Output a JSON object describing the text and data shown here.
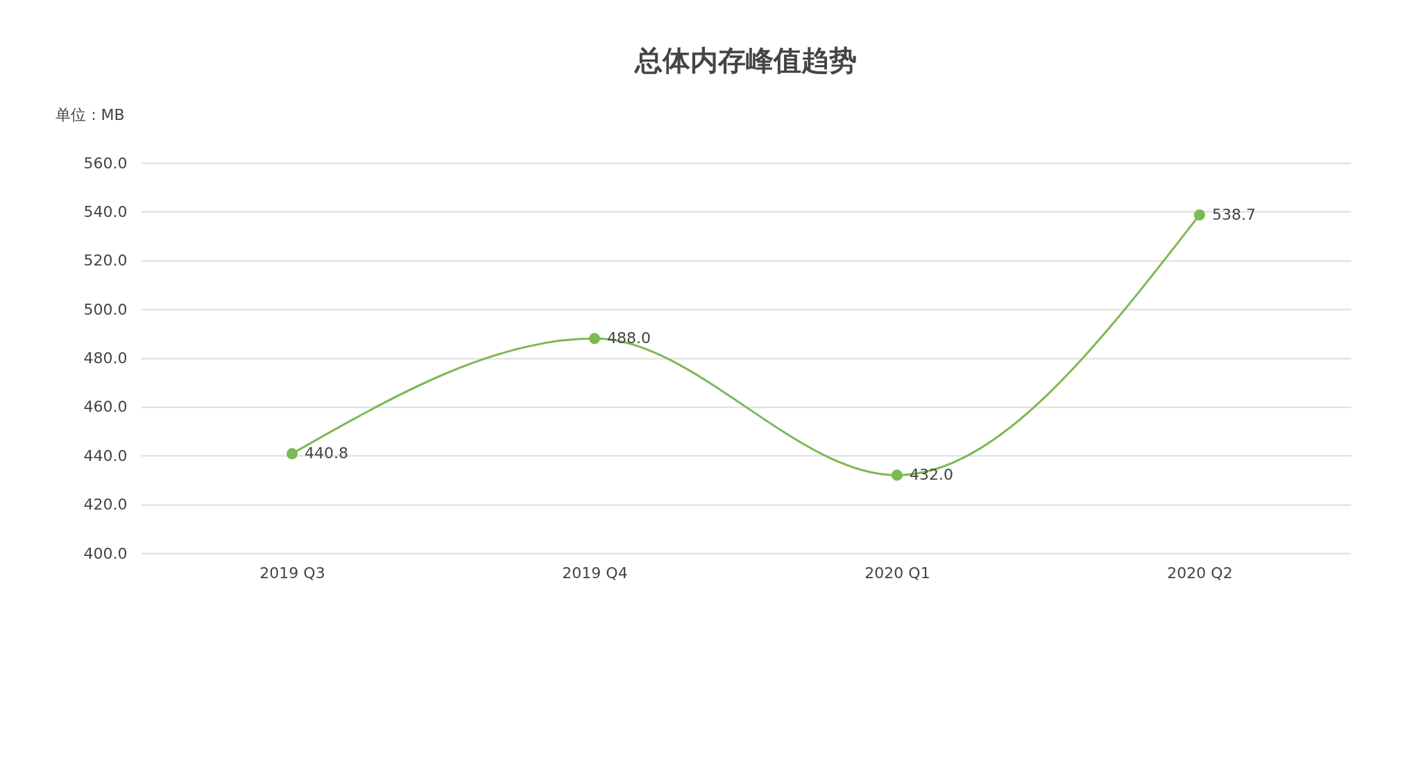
{
  "chart_data": {
    "type": "line",
    "title": "总体内存峰值趋势",
    "ylabel": "单位：MB",
    "categories": [
      "2019 Q3",
      "2019 Q4",
      "2020 Q1",
      "2020 Q2"
    ],
    "series": [
      {
        "color": "#7db955",
        "values": [
          440.8,
          488.0,
          432.0,
          538.7
        ]
      }
    ],
    "value_labels": [
      "440.8",
      "488.0",
      "432.0",
      "538.7"
    ],
    "ylim": [
      400,
      560
    ],
    "yticks": [
      {
        "value": 400,
        "label": "400.0"
      },
      {
        "value": 420,
        "label": "420.0"
      },
      {
        "value": 440,
        "label": "440.0"
      },
      {
        "value": 460,
        "label": "460.0"
      },
      {
        "value": 480,
        "label": "480.0"
      },
      {
        "value": 500,
        "label": "500.0"
      },
      {
        "value": 520,
        "label": "520.0"
      },
      {
        "value": 540,
        "label": "540.0"
      },
      {
        "value": 560,
        "label": "560.0"
      }
    ],
    "grid": "y",
    "marker": "circle",
    "line_style": "solid",
    "legend": false
  }
}
